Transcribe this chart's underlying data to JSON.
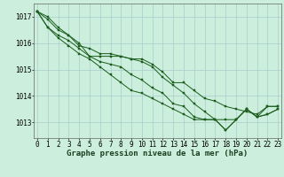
{
  "title": "Graphe pression niveau de la mer (hPa)",
  "bg_color": "#cceedd",
  "grid_color": "#aacccc",
  "line_color": "#1a5c1a",
  "hours": [
    0,
    1,
    2,
    3,
    4,
    5,
    6,
    7,
    8,
    9,
    10,
    11,
    12,
    13,
    14,
    15,
    16,
    17,
    18,
    19,
    20,
    21,
    22,
    23
  ],
  "series": [
    [
      1017.2,
      1017.0,
      1016.6,
      1016.3,
      1016.0,
      1015.5,
      1015.5,
      1015.5,
      1015.5,
      1015.4,
      1015.4,
      1015.2,
      1014.9,
      1014.5,
      1014.5,
      1014.2,
      1013.9,
      1013.8,
      1013.6,
      1013.5,
      1013.4,
      1013.3,
      1013.6,
      1013.6
    ],
    [
      1017.2,
      1016.9,
      1016.5,
      1016.3,
      1015.9,
      1015.8,
      1015.6,
      1015.6,
      1015.5,
      1015.4,
      1015.3,
      1015.1,
      1014.7,
      1014.4,
      1014.1,
      1013.7,
      1013.4,
      1013.1,
      1013.1,
      1013.1,
      1013.5,
      1013.2,
      1013.6,
      1013.6
    ],
    [
      1017.2,
      1016.6,
      1016.3,
      1016.1,
      1015.8,
      1015.5,
      1015.3,
      1015.2,
      1015.1,
      1014.8,
      1014.6,
      1014.3,
      1014.1,
      1013.7,
      1013.6,
      1013.2,
      1013.1,
      1013.1,
      1012.7,
      1013.1,
      1013.5,
      1013.2,
      1013.3,
      1013.5
    ],
    [
      1017.2,
      1016.6,
      1016.2,
      1015.9,
      1015.6,
      1015.4,
      1015.1,
      1014.8,
      1014.5,
      1014.2,
      1014.1,
      1013.9,
      1013.7,
      1013.5,
      1013.3,
      1013.1,
      1013.1,
      1013.1,
      1012.7,
      1013.1,
      1013.5,
      1013.2,
      1013.3,
      1013.5
    ]
  ],
  "ylim": [
    1012.4,
    1017.5
  ],
  "yticks": [
    1013,
    1014,
    1015,
    1016,
    1017
  ],
  "xlim": [
    -0.3,
    23.3
  ],
  "xticks": [
    0,
    1,
    2,
    3,
    4,
    5,
    6,
    7,
    8,
    9,
    10,
    11,
    12,
    13,
    14,
    15,
    16,
    17,
    18,
    19,
    20,
    21,
    22,
    23
  ],
  "tick_fontsize": 5.5,
  "title_fontsize": 6.5,
  "marker_size": 2.0,
  "line_width": 0.7
}
